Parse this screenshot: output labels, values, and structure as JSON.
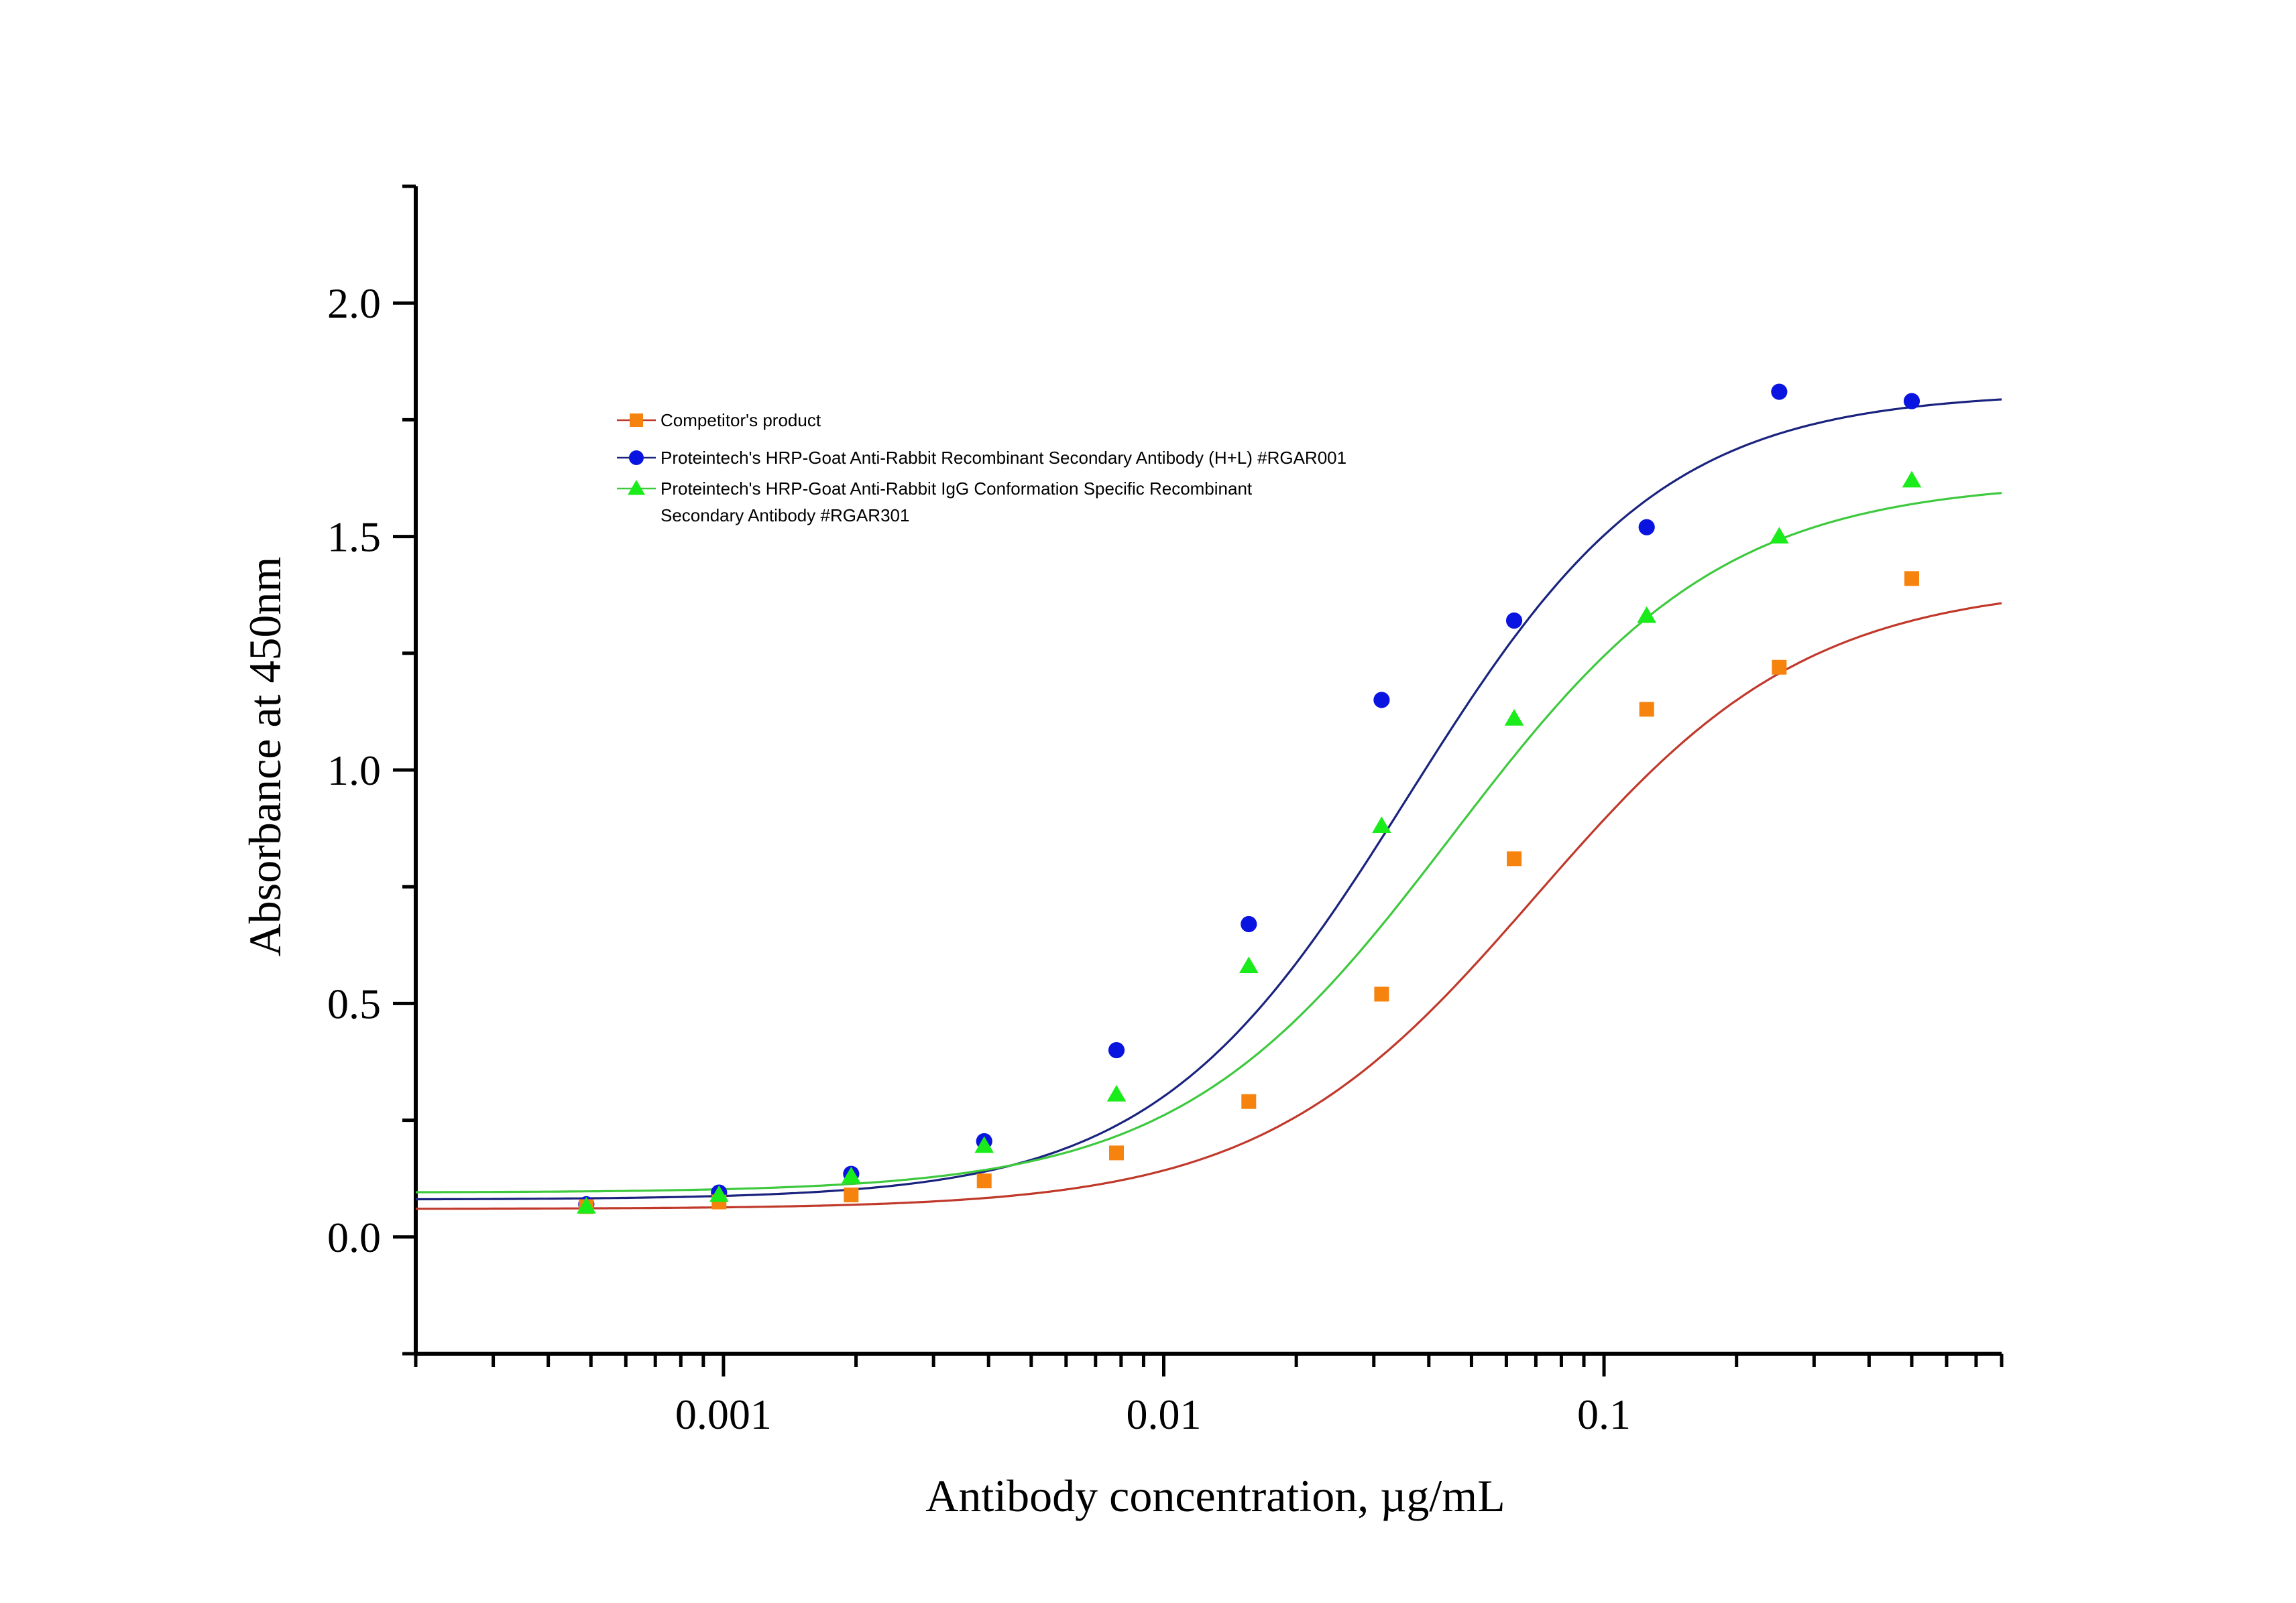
{
  "chart_data": {
    "type": "scatter",
    "title": "",
    "xlabel": "Antibody concentration, µg/mL",
    "ylabel": "Absorbance at 450nm",
    "xscale": "log",
    "xlim": [
      0.0002,
      0.8
    ],
    "ylim": [
      -0.25,
      2.25
    ],
    "xticks": [
      0.001,
      0.01,
      0.1
    ],
    "xtick_labels": [
      "0.001",
      "0.01",
      "0.1"
    ],
    "yticks": [
      0.0,
      0.5,
      1.0,
      1.5,
      2.0
    ],
    "ytick_labels": [
      "0.0",
      "0.5",
      "1.0",
      "1.5",
      "2.0"
    ],
    "grid": false,
    "legend_position": "upper-left",
    "series": [
      {
        "name": "Competitor's product",
        "marker": "square",
        "marker_color": "#f7830f",
        "line_color": "#c0392b",
        "x": [
          0.000488,
          0.000977,
          0.00195,
          0.00391,
          0.00781,
          0.0156,
          0.03125,
          0.0625,
          0.125,
          0.25,
          0.5
        ],
        "y": [
          0.065,
          0.075,
          0.09,
          0.12,
          0.18,
          0.29,
          0.52,
          0.81,
          1.13,
          1.22,
          1.41
        ],
        "fit": {
          "bottom": 0.06,
          "top": 1.4,
          "ec50": 0.07,
          "hill": 1.4
        }
      },
      {
        "name": "Proteintech's HRP-Goat Anti-Rabbit Recombinant Secondary Antibody (H+L) #RGAR001",
        "marker": "circle",
        "marker_color": "#0a14e0",
        "line_color": "#1a237e",
        "x": [
          0.000488,
          0.000977,
          0.00195,
          0.00391,
          0.00781,
          0.0156,
          0.03125,
          0.0625,
          0.125,
          0.25,
          0.5
        ],
        "y": [
          0.07,
          0.095,
          0.135,
          0.205,
          0.4,
          0.67,
          1.15,
          1.32,
          1.52,
          1.81,
          1.79
        ],
        "fit": {
          "bottom": 0.08,
          "top": 1.81,
          "ec50": 0.036,
          "hill": 1.5
        }
      },
      {
        "name_lines": [
          "Proteintech's HRP-Goat Anti-Rabbit IgG Conformation Specific Recombinant",
          "Secondary Antibody  #RGAR301"
        ],
        "marker": "triangle",
        "marker_color": "#1aeb1a",
        "line_color": "#3ec93e",
        "x": [
          0.000488,
          0.000977,
          0.00195,
          0.00391,
          0.00781,
          0.0156,
          0.03125,
          0.0625,
          0.125,
          0.25,
          0.5
        ],
        "y": [
          0.065,
          0.09,
          0.13,
          0.195,
          0.305,
          0.58,
          0.88,
          1.11,
          1.33,
          1.5,
          1.62
        ],
        "fit": {
          "bottom": 0.095,
          "top": 1.62,
          "ec50": 0.045,
          "hill": 1.4
        }
      }
    ]
  }
}
